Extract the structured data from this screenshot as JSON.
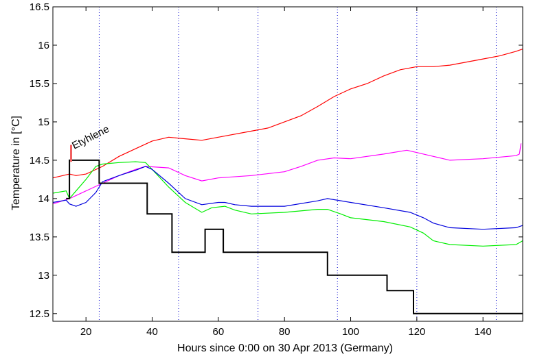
{
  "chart_data": {
    "type": "line",
    "title": "",
    "xlabel": "Hours since 0:00 on 30 Apr 2013 (Germany)",
    "ylabel": "Temperature in [°C]",
    "xlim": [
      10,
      152
    ],
    "ylim": [
      12.4,
      16.5
    ],
    "xticks": [
      20,
      40,
      60,
      80,
      100,
      120,
      140
    ],
    "yticks": [
      12.5,
      13,
      13.5,
      14,
      14.5,
      15,
      15.5,
      16,
      16.5
    ],
    "vertical_reference_lines": [
      24,
      48,
      72,
      96,
      120,
      144
    ],
    "annotation": {
      "text": "Etyhlene",
      "marker_x": 15.5,
      "marker_y": [
        14.48,
        14.7
      ],
      "marker_color": "#f06060"
    },
    "series": [
      {
        "name": "red",
        "color": "#ff0000",
        "x": [
          10,
          15,
          17,
          20,
          25,
          30,
          35,
          40,
          45,
          50,
          55,
          60,
          70,
          75,
          80,
          85,
          90,
          95,
          100,
          105,
          110,
          115,
          120,
          125,
          130,
          135,
          140,
          145,
          150,
          152
        ],
        "y": [
          14.27,
          14.32,
          14.3,
          14.32,
          14.42,
          14.55,
          14.65,
          14.75,
          14.8,
          14.78,
          14.76,
          14.8,
          14.88,
          14.92,
          15.0,
          15.08,
          15.2,
          15.33,
          15.43,
          15.5,
          15.6,
          15.68,
          15.72,
          15.72,
          15.74,
          15.78,
          15.82,
          15.86,
          15.92,
          15.95
        ]
      },
      {
        "name": "magenta",
        "color": "#ff00ff",
        "x": [
          10,
          15,
          20,
          25,
          30,
          35,
          38,
          45,
          50,
          55,
          60,
          70,
          80,
          85,
          90,
          95,
          100,
          110,
          117,
          120,
          125,
          130,
          140,
          150,
          151,
          151.5
        ],
        "y": [
          13.93,
          14.0,
          14.1,
          14.2,
          14.3,
          14.38,
          14.42,
          14.4,
          14.3,
          14.23,
          14.27,
          14.3,
          14.35,
          14.42,
          14.5,
          14.53,
          14.52,
          14.58,
          14.63,
          14.6,
          14.55,
          14.5,
          14.52,
          14.56,
          14.58,
          14.72
        ]
      },
      {
        "name": "green",
        "color": "#00ee00",
        "x": [
          10,
          14,
          15,
          17,
          20,
          23,
          25,
          30,
          35,
          38,
          40,
          45,
          50,
          55,
          58,
          62,
          65,
          70,
          80,
          90,
          93,
          97,
          100,
          110,
          118,
          122,
          125,
          130,
          140,
          150,
          152
        ],
        "y": [
          14.07,
          14.1,
          14.0,
          14.1,
          14.25,
          14.42,
          14.45,
          14.47,
          14.48,
          14.47,
          14.38,
          14.15,
          13.95,
          13.82,
          13.88,
          13.9,
          13.85,
          13.8,
          13.82,
          13.86,
          13.86,
          13.8,
          13.75,
          13.7,
          13.63,
          13.55,
          13.45,
          13.4,
          13.38,
          13.4,
          13.45
        ]
      },
      {
        "name": "blue",
        "color": "#0000dd",
        "x": [
          10,
          14,
          15,
          17,
          20,
          23,
          25,
          30,
          35,
          38,
          40,
          45,
          50,
          55,
          60,
          62,
          65,
          70,
          80,
          90,
          93,
          100,
          110,
          118,
          122,
          125,
          130,
          140,
          150,
          152
        ],
        "y": [
          13.95,
          13.98,
          13.93,
          13.9,
          13.95,
          14.08,
          14.22,
          14.3,
          14.37,
          14.42,
          14.38,
          14.2,
          14.0,
          13.92,
          13.95,
          13.95,
          13.92,
          13.9,
          13.9,
          13.97,
          14.0,
          13.95,
          13.88,
          13.82,
          13.75,
          13.68,
          13.62,
          13.6,
          13.62,
          13.65
        ]
      },
      {
        "name": "setpoint",
        "color": "#000000",
        "x": [
          14,
          15,
          15,
          24,
          24,
          38.5,
          38.5,
          46,
          46,
          56,
          56,
          61.5,
          61.5,
          93,
          93,
          111,
          111,
          119,
          119,
          152
        ],
        "y": [
          14.0,
          14.0,
          14.5,
          14.5,
          14.2,
          14.2,
          13.8,
          13.8,
          13.3,
          13.3,
          13.6,
          13.6,
          13.3,
          13.3,
          13.0,
          13.0,
          12.8,
          12.8,
          12.5,
          12.5
        ]
      }
    ]
  }
}
